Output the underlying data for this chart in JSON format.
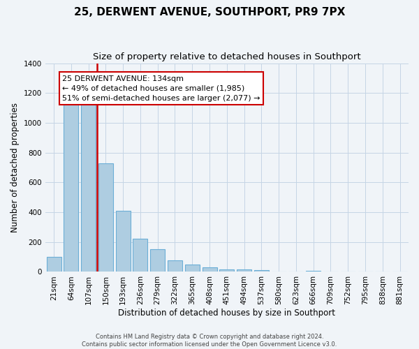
{
  "title": "25, DERWENT AVENUE, SOUTHPORT, PR9 7PX",
  "subtitle": "Size of property relative to detached houses in Southport",
  "xlabel": "Distribution of detached houses by size in Southport",
  "ylabel": "Number of detached properties",
  "bar_labels": [
    "21sqm",
    "64sqm",
    "107sqm",
    "150sqm",
    "193sqm",
    "236sqm",
    "279sqm",
    "322sqm",
    "365sqm",
    "408sqm",
    "451sqm",
    "494sqm",
    "537sqm",
    "580sqm",
    "623sqm",
    "666sqm",
    "709sqm",
    "752sqm",
    "795sqm",
    "838sqm",
    "881sqm"
  ],
  "bar_values": [
    100,
    1150,
    1150,
    730,
    410,
    220,
    150,
    75,
    50,
    30,
    15,
    15,
    10,
    0,
    0,
    5,
    0,
    0,
    0,
    0,
    0
  ],
  "bar_color": "#aecde1",
  "bar_edge_color": "#6baed6",
  "highlight_bar_index": 2,
  "highlight_color": "#cc0000",
  "annotation_line1": "25 DERWENT AVENUE: 134sqm",
  "annotation_line2": "← 49% of detached houses are smaller (1,985)",
  "annotation_line3": "51% of semi-detached houses are larger (2,077) →",
  "ylim": [
    0,
    1400
  ],
  "yticks": [
    0,
    200,
    400,
    600,
    800,
    1000,
    1200,
    1400
  ],
  "footer1": "Contains HM Land Registry data © Crown copyright and database right 2024.",
  "footer2": "Contains public sector information licensed under the Open Government Licence v3.0.",
  "background_color": "#f0f4f8",
  "plot_bg_color": "#f0f4f8",
  "grid_color": "#c5d5e5",
  "vline_x": 2.5,
  "title_fontsize": 11,
  "subtitle_fontsize": 9.5,
  "tick_fontsize": 7.5,
  "label_fontsize": 8.5,
  "annotation_fontsize": 8,
  "footer_fontsize": 6
}
